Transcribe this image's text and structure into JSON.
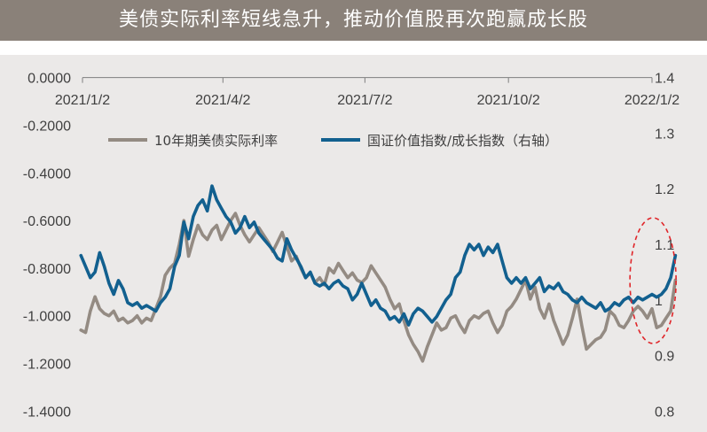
{
  "header": {
    "title": "美债实际利率短线急升，推动价值股再次跑赢成长股"
  },
  "colors": {
    "banner": "#8a8179",
    "series_rate": "#948b83",
    "series_ratio": "#12608f",
    "annotation": "#e0262a",
    "plot_bg": "#ebe9e8"
  },
  "chart_data": {
    "type": "line",
    "x_ticks": [
      "2021/1/2",
      "2021/4/2",
      "2021/7/2",
      "2021/10/2",
      "2022/1/2"
    ],
    "xlim": [
      "2021/1/2",
      "2022/1/2"
    ],
    "y_ticks_left": [
      "0.0000",
      "-0.2000",
      "-0.4000",
      "-0.6000",
      "-0.8000",
      "-1.0000",
      "-1.2000",
      "-1.4000"
    ],
    "y_ticks_right": [
      "1.4",
      "1.3",
      "1.2",
      "1.1",
      "1",
      "0.9",
      "0.8"
    ],
    "ylim_left": [
      -1.4,
      0
    ],
    "ylim_right": [
      0.8,
      1.4
    ],
    "legend_position": "top",
    "series": [
      {
        "name": "10年期美债实际利率",
        "axis": "left",
        "points": [
          [
            "2021-01-01",
            -1.06
          ],
          [
            "2021-01-04",
            -1.07
          ],
          [
            "2021-01-07",
            -0.98
          ],
          [
            "2021-01-10",
            -0.92
          ],
          [
            "2021-01-13",
            -0.97
          ],
          [
            "2021-01-16",
            -0.99
          ],
          [
            "2021-01-19",
            -1.0
          ],
          [
            "2021-01-22",
            -0.98
          ],
          [
            "2021-01-25",
            -1.02
          ],
          [
            "2021-01-28",
            -1.01
          ],
          [
            "2021-01-31",
            -1.03
          ],
          [
            "2021-02-03",
            -1.02
          ],
          [
            "2021-02-06",
            -1.0
          ],
          [
            "2021-02-09",
            -1.03
          ],
          [
            "2021-02-12",
            -1.01
          ],
          [
            "2021-02-15",
            -1.02
          ],
          [
            "2021-02-18",
            -0.97
          ],
          [
            "2021-02-21",
            -0.92
          ],
          [
            "2021-02-24",
            -0.83
          ],
          [
            "2021-02-27",
            -0.8
          ],
          [
            "2021-03-02",
            -0.78
          ],
          [
            "2021-03-05",
            -0.7
          ],
          [
            "2021-03-08",
            -0.6
          ],
          [
            "2021-03-11",
            -0.75
          ],
          [
            "2021-03-14",
            -0.68
          ],
          [
            "2021-03-17",
            -0.62
          ],
          [
            "2021-03-20",
            -0.66
          ],
          [
            "2021-03-23",
            -0.68
          ],
          [
            "2021-03-26",
            -0.64
          ],
          [
            "2021-03-29",
            -0.62
          ],
          [
            "2021-04-01",
            -0.68
          ],
          [
            "2021-04-04",
            -0.64
          ],
          [
            "2021-04-07",
            -0.6
          ],
          [
            "2021-04-10",
            -0.57
          ],
          [
            "2021-04-13",
            -0.62
          ],
          [
            "2021-04-16",
            -0.66
          ],
          [
            "2021-04-19",
            -0.69
          ],
          [
            "2021-04-22",
            -0.66
          ],
          [
            "2021-04-25",
            -0.63
          ],
          [
            "2021-04-28",
            -0.66
          ],
          [
            "2021-05-01",
            -0.69
          ],
          [
            "2021-05-04",
            -0.73
          ],
          [
            "2021-05-07",
            -0.69
          ],
          [
            "2021-05-10",
            -0.65
          ],
          [
            "2021-05-13",
            -0.71
          ],
          [
            "2021-05-16",
            -0.77
          ],
          [
            "2021-05-19",
            -0.75
          ],
          [
            "2021-05-22",
            -0.8
          ],
          [
            "2021-05-25",
            -0.84
          ],
          [
            "2021-05-28",
            -0.82
          ],
          [
            "2021-05-31",
            -0.86
          ],
          [
            "2021-06-03",
            -0.84
          ],
          [
            "2021-06-06",
            -0.87
          ],
          [
            "2021-06-09",
            -0.8
          ],
          [
            "2021-06-12",
            -0.82
          ],
          [
            "2021-06-15",
            -0.78
          ],
          [
            "2021-06-18",
            -0.81
          ],
          [
            "2021-06-21",
            -0.84
          ],
          [
            "2021-06-24",
            -0.82
          ],
          [
            "2021-06-27",
            -0.85
          ],
          [
            "2021-06-30",
            -0.86
          ],
          [
            "2021-07-03",
            -0.84
          ],
          [
            "2021-07-06",
            -0.79
          ],
          [
            "2021-07-09",
            -0.82
          ],
          [
            "2021-07-12",
            -0.85
          ],
          [
            "2021-07-15",
            -0.88
          ],
          [
            "2021-07-18",
            -0.93
          ],
          [
            "2021-07-21",
            -0.97
          ],
          [
            "2021-07-24",
            -0.95
          ],
          [
            "2021-07-27",
            -1.02
          ],
          [
            "2021-07-30",
            -1.08
          ],
          [
            "2021-08-02",
            -1.12
          ],
          [
            "2021-08-05",
            -1.15
          ],
          [
            "2021-08-08",
            -1.19
          ],
          [
            "2021-08-11",
            -1.13
          ],
          [
            "2021-08-14",
            -1.08
          ],
          [
            "2021-08-17",
            -1.03
          ],
          [
            "2021-08-20",
            -1.06
          ],
          [
            "2021-08-23",
            -1.05
          ],
          [
            "2021-08-26",
            -1.01
          ],
          [
            "2021-08-29",
            -1.0
          ],
          [
            "2021-09-01",
            -1.04
          ],
          [
            "2021-09-04",
            -1.07
          ],
          [
            "2021-09-07",
            -1.02
          ],
          [
            "2021-09-10",
            -1.0
          ],
          [
            "2021-09-13",
            -1.01
          ],
          [
            "2021-09-16",
            -0.99
          ],
          [
            "2021-09-19",
            -0.98
          ],
          [
            "2021-09-22",
            -1.03
          ],
          [
            "2021-09-25",
            -1.07
          ],
          [
            "2021-09-28",
            -1.04
          ],
          [
            "2021-10-01",
            -0.98
          ],
          [
            "2021-10-04",
            -0.96
          ],
          [
            "2021-10-07",
            -0.93
          ],
          [
            "2021-10-10",
            -0.89
          ],
          [
            "2021-10-13",
            -0.85
          ],
          [
            "2021-10-16",
            -0.93
          ],
          [
            "2021-10-19",
            -0.88
          ],
          [
            "2021-10-22",
            -0.97
          ],
          [
            "2021-10-25",
            -1.01
          ],
          [
            "2021-10-28",
            -0.95
          ],
          [
            "2021-10-31",
            -1.02
          ],
          [
            "2021-11-03",
            -1.07
          ],
          [
            "2021-11-06",
            -1.12
          ],
          [
            "2021-11-09",
            -1.08
          ],
          [
            "2021-11-12",
            -1.01
          ],
          [
            "2021-11-15",
            -0.93
          ],
          [
            "2021-11-18",
            -1.04
          ],
          [
            "2021-11-21",
            -1.14
          ],
          [
            "2021-11-24",
            -1.12
          ],
          [
            "2021-11-27",
            -1.1
          ],
          [
            "2021-11-30",
            -1.09
          ],
          [
            "2021-12-03",
            -1.06
          ],
          [
            "2021-12-06",
            -0.98
          ],
          [
            "2021-12-09",
            -1.0
          ],
          [
            "2021-12-12",
            -1.04
          ],
          [
            "2021-12-15",
            -1.05
          ],
          [
            "2021-12-18",
            -1.02
          ],
          [
            "2021-12-21",
            -0.98
          ],
          [
            "2021-12-24",
            -0.96
          ],
          [
            "2021-12-27",
            -0.98
          ],
          [
            "2021-12-30",
            -1.01
          ],
          [
            "2022-01-02",
            -0.97
          ],
          [
            "2022-01-05",
            -1.05
          ],
          [
            "2022-01-08",
            -1.04
          ],
          [
            "2022-01-11",
            -1.01
          ],
          [
            "2022-01-14",
            -0.98
          ],
          [
            "2022-01-17",
            -0.85
          ]
        ]
      },
      {
        "name": "国证价值指数/成长指数（右轴）",
        "axis": "right",
        "points": [
          [
            "2021-01-01",
            1.08
          ],
          [
            "2021-01-04",
            1.06
          ],
          [
            "2021-01-07",
            1.04
          ],
          [
            "2021-01-10",
            1.05
          ],
          [
            "2021-01-13",
            1.085
          ],
          [
            "2021-01-16",
            1.06
          ],
          [
            "2021-01-19",
            1.03
          ],
          [
            "2021-01-22",
            1.01
          ],
          [
            "2021-01-25",
            1.035
          ],
          [
            "2021-01-28",
            1.02
          ],
          [
            "2021-01-31",
            0.995
          ],
          [
            "2021-02-03",
            0.99
          ],
          [
            "2021-02-06",
            0.995
          ],
          [
            "2021-02-09",
            0.985
          ],
          [
            "2021-02-12",
            0.99
          ],
          [
            "2021-02-15",
            0.985
          ],
          [
            "2021-02-18",
            0.98
          ],
          [
            "2021-02-21",
            0.995
          ],
          [
            "2021-02-24",
            1.005
          ],
          [
            "2021-02-27",
            1.02
          ],
          [
            "2021-03-02",
            1.06
          ],
          [
            "2021-03-05",
            1.08
          ],
          [
            "2021-03-08",
            1.14
          ],
          [
            "2021-03-11",
            1.11
          ],
          [
            "2021-03-14",
            1.15
          ],
          [
            "2021-03-17",
            1.17
          ],
          [
            "2021-03-20",
            1.18
          ],
          [
            "2021-03-23",
            1.16
          ],
          [
            "2021-03-26",
            1.205
          ],
          [
            "2021-03-29",
            1.18
          ],
          [
            "2021-04-01",
            1.165
          ],
          [
            "2021-04-04",
            1.15
          ],
          [
            "2021-04-07",
            1.14
          ],
          [
            "2021-04-10",
            1.12
          ],
          [
            "2021-04-13",
            1.13
          ],
          [
            "2021-04-16",
            1.15
          ],
          [
            "2021-04-19",
            1.13
          ],
          [
            "2021-04-22",
            1.14
          ],
          [
            "2021-04-25",
            1.12
          ],
          [
            "2021-04-28",
            1.11
          ],
          [
            "2021-05-01",
            1.1
          ],
          [
            "2021-05-04",
            1.09
          ],
          [
            "2021-05-07",
            1.075
          ],
          [
            "2021-05-10",
            1.07
          ],
          [
            "2021-05-13",
            1.11
          ],
          [
            "2021-05-16",
            1.09
          ],
          [
            "2021-05-19",
            1.075
          ],
          [
            "2021-05-22",
            1.06
          ],
          [
            "2021-05-25",
            1.04
          ],
          [
            "2021-05-28",
            1.05
          ],
          [
            "2021-05-31",
            1.03
          ],
          [
            "2021-06-03",
            1.025
          ],
          [
            "2021-06-06",
            1.03
          ],
          [
            "2021-06-09",
            1.02
          ],
          [
            "2021-06-12",
            1.03
          ],
          [
            "2021-06-15",
            1.035
          ],
          [
            "2021-06-18",
            1.025
          ],
          [
            "2021-06-21",
            1.02
          ],
          [
            "2021-06-24",
            1.0
          ],
          [
            "2021-06-27",
            1.01
          ],
          [
            "2021-06-30",
            1.03
          ],
          [
            "2021-07-03",
            1.01
          ],
          [
            "2021-07-06",
            0.99
          ],
          [
            "2021-07-09",
            1.0
          ],
          [
            "2021-07-12",
            0.985
          ],
          [
            "2021-07-15",
            0.98
          ],
          [
            "2021-07-18",
            0.965
          ],
          [
            "2021-07-21",
            0.97
          ],
          [
            "2021-07-24",
            0.96
          ],
          [
            "2021-07-27",
            0.975
          ],
          [
            "2021-07-30",
            0.955
          ],
          [
            "2021-08-02",
            0.975
          ],
          [
            "2021-08-05",
            0.985
          ],
          [
            "2021-08-08",
            0.98
          ],
          [
            "2021-08-11",
            0.97
          ],
          [
            "2021-08-14",
            0.96
          ],
          [
            "2021-08-17",
            0.97
          ],
          [
            "2021-08-20",
            0.985
          ],
          [
            "2021-08-23",
            1.0
          ],
          [
            "2021-08-26",
            1.01
          ],
          [
            "2021-08-29",
            1.04
          ],
          [
            "2021-09-01",
            1.05
          ],
          [
            "2021-09-04",
            1.08
          ],
          [
            "2021-09-07",
            1.1
          ],
          [
            "2021-09-10",
            1.09
          ],
          [
            "2021-09-13",
            1.1
          ],
          [
            "2021-09-16",
            1.08
          ],
          [
            "2021-09-19",
            1.095
          ],
          [
            "2021-09-22",
            1.085
          ],
          [
            "2021-09-25",
            1.1
          ],
          [
            "2021-09-28",
            1.07
          ],
          [
            "2021-10-01",
            1.04
          ],
          [
            "2021-10-04",
            1.03
          ],
          [
            "2021-10-07",
            1.04
          ],
          [
            "2021-10-10",
            1.03
          ],
          [
            "2021-10-13",
            1.04
          ],
          [
            "2021-10-16",
            1.02
          ],
          [
            "2021-10-19",
            1.03
          ],
          [
            "2021-10-22",
            1.04
          ],
          [
            "2021-10-25",
            1.015
          ],
          [
            "2021-10-28",
            1.025
          ],
          [
            "2021-10-31",
            1.02
          ],
          [
            "2021-11-03",
            1.03
          ],
          [
            "2021-11-06",
            1.015
          ],
          [
            "2021-11-09",
            1.01
          ],
          [
            "2021-11-12",
            1.0
          ],
          [
            "2021-11-15",
            0.995
          ],
          [
            "2021-11-18",
            1.005
          ],
          [
            "2021-11-21",
            0.995
          ],
          [
            "2021-11-24",
            0.99
          ],
          [
            "2021-11-27",
            0.985
          ],
          [
            "2021-11-30",
            0.995
          ],
          [
            "2021-12-03",
            0.98
          ],
          [
            "2021-12-06",
            0.985
          ],
          [
            "2021-12-09",
            0.995
          ],
          [
            "2021-12-12",
            0.99
          ],
          [
            "2021-12-15",
            1.0
          ],
          [
            "2021-12-18",
            1.005
          ],
          [
            "2021-12-21",
            0.995
          ],
          [
            "2021-12-24",
            1.005
          ],
          [
            "2021-12-27",
            1.0
          ],
          [
            "2021-12-30",
            1.005
          ],
          [
            "2022-01-02",
            1.01
          ],
          [
            "2022-01-05",
            1.005
          ],
          [
            "2022-01-08",
            1.01
          ],
          [
            "2022-01-11",
            1.02
          ],
          [
            "2022-01-14",
            1.04
          ],
          [
            "2022-01-17",
            1.08
          ]
        ]
      }
    ]
  }
}
